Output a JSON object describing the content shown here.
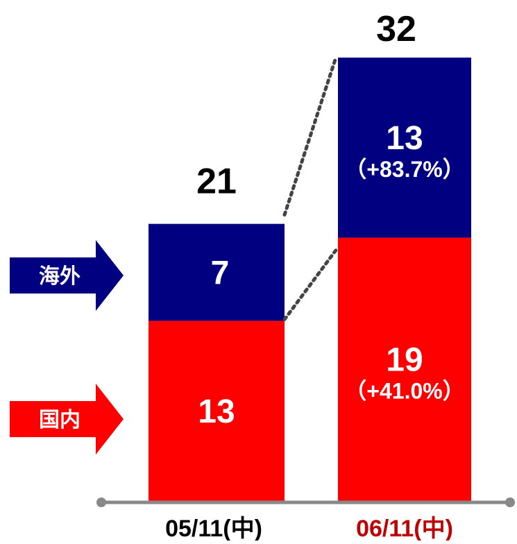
{
  "chart_data": {
    "type": "bar",
    "stacked": true,
    "categories": [
      "05/11(中)",
      "06/11(中)"
    ],
    "series": [
      {
        "name": "国内",
        "values": [
          13,
          19
        ],
        "change": [
          "",
          "（+41.0%）"
        ],
        "color": "#ff0000"
      },
      {
        "name": "海外",
        "values": [
          7,
          13
        ],
        "change": [
          "",
          "（+83.7%）"
        ],
        "color": "#000080"
      }
    ],
    "totals": [
      21,
      32
    ],
    "category_colors": [
      "#000000",
      "#c00000"
    ],
    "ylim": [
      0,
      32
    ],
    "grid": false,
    "legend": "left, arrow shapes",
    "connectors": "dotted"
  }
}
